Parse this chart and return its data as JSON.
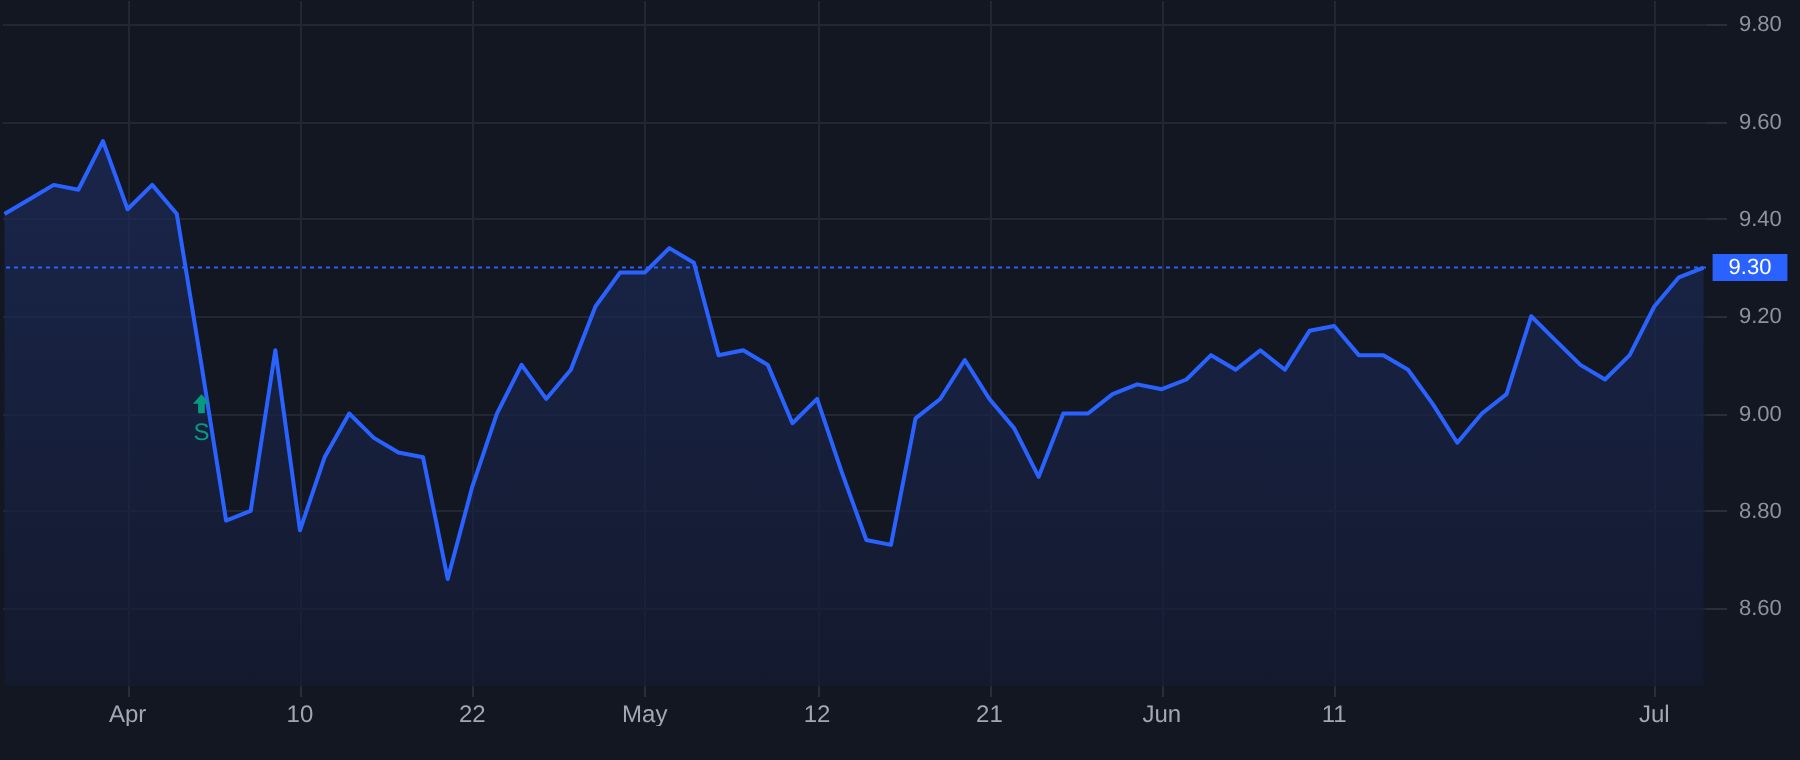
{
  "chart_data": {
    "type": "area",
    "categories": [
      null,
      null,
      null,
      null,
      null,
      "Apr",
      null,
      null,
      null,
      null,
      null,
      null,
      "10",
      null,
      null,
      null,
      null,
      null,
      null,
      "22",
      null,
      null,
      null,
      null,
      null,
      null,
      "May",
      null,
      null,
      null,
      null,
      null,
      null,
      "12",
      null,
      null,
      null,
      null,
      null,
      null,
      "21",
      null,
      null,
      null,
      null,
      null,
      null,
      "Jun",
      null,
      null,
      null,
      null,
      null,
      null,
      "11",
      null,
      null,
      null,
      null,
      null,
      null,
      null,
      null,
      null,
      null,
      null,
      null,
      "Jul",
      null,
      null
    ],
    "series": [
      {
        "color": "#2962ff",
        "values": [
          9.41,
          9.44,
          9.47,
          9.46,
          9.56,
          9.42,
          9.47,
          9.41,
          9.1,
          8.78,
          8.8,
          9.13,
          8.76,
          8.91,
          9.0,
          8.95,
          8.92,
          8.91,
          8.66,
          8.85,
          9.0,
          9.1,
          9.03,
          9.09,
          9.22,
          9.29,
          9.29,
          9.34,
          9.31,
          9.12,
          9.13,
          9.1,
          8.98,
          9.03,
          8.88,
          8.74,
          8.73,
          8.99,
          9.03,
          9.11,
          9.03,
          8.97,
          8.87,
          9.0,
          9.0,
          9.04,
          9.06,
          9.05,
          9.07,
          9.12,
          9.09,
          9.13,
          9.09,
          9.17,
          9.18,
          9.12,
          9.12,
          9.09,
          9.02,
          8.94,
          9.0,
          9.04,
          9.2,
          9.15,
          9.1,
          9.07,
          9.12,
          9.22,
          9.28,
          9.3
        ]
      },
      {
        "type": "scatter",
        "name": "S",
        "color": "#089981",
        "marker": "triangle",
        "values": [
          null,
          null,
          null,
          null,
          null,
          null,
          null,
          null,
          9.02,
          null,
          null,
          null,
          null,
          null,
          null,
          null,
          null,
          null,
          null,
          null,
          null,
          null,
          null,
          null,
          null,
          null,
          null,
          null,
          null,
          null,
          null,
          null,
          null,
          null,
          null,
          null,
          null,
          null,
          null,
          null,
          null,
          null,
          null,
          null,
          null,
          null,
          null,
          null,
          null,
          null,
          null,
          null,
          null,
          null,
          null,
          null,
          null,
          null,
          null,
          null,
          null,
          null,
          null,
          null,
          null,
          null,
          null,
          null,
          null,
          null
        ]
      }
    ],
    "ylim": [
      8.44,
      9.85
    ],
    "yticks": [
      {
        "value": 8.6,
        "label": "8.60"
      },
      {
        "value": 8.8,
        "label": "8.80"
      },
      {
        "value": 9.0,
        "label": "9.00"
      },
      {
        "value": 9.2,
        "label": "9.20"
      },
      {
        "value": 9.4,
        "label": "9.40"
      },
      {
        "value": 9.6,
        "label": "9.60"
      },
      {
        "value": 9.8,
        "label": "9.80"
      }
    ],
    "grid": true,
    "ref_lines": [
      {
        "axis": "y",
        "value": 9.3,
        "label": "9.30",
        "color": "#2962ff",
        "line_style": "dotted"
      }
    ]
  }
}
